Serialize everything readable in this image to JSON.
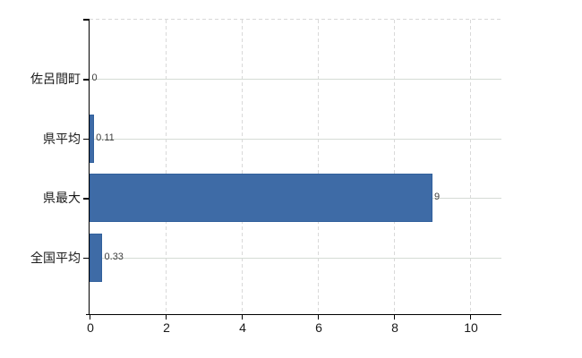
{
  "chart_data": {
    "type": "bar",
    "orientation": "horizontal",
    "title": "",
    "xlabel": "",
    "ylabel": "",
    "categories": [
      "佐呂間町",
      "県平均",
      "県最大",
      "全国平均"
    ],
    "values": [
      0,
      0.11,
      9,
      0.33
    ],
    "value_labels": [
      "0",
      "0.11",
      "9",
      "0.33"
    ],
    "x_ticks": [
      0,
      2,
      4,
      6,
      8,
      10
    ],
    "x_tick_labels": [
      "0",
      "2",
      "4",
      "6",
      "8",
      "10"
    ],
    "xlim": [
      0,
      10.8
    ],
    "grid": true,
    "legend": false,
    "colors": {
      "bar_fill": "#3e6ba6",
      "bar_border": "#31609c",
      "h_gridline": "#d5dbd5",
      "v_gridline": "#d9d9d9",
      "axis_line": "#000000",
      "tick_label": "#1a1a1a",
      "value_label": "#3d3d3d",
      "background": "#ffffff"
    }
  }
}
